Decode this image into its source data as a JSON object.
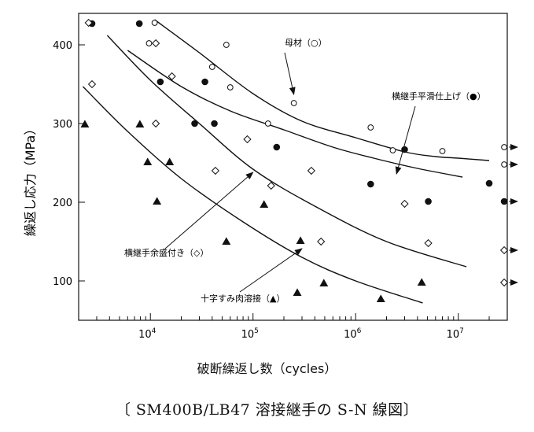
{
  "chart_data": {
    "type": "scatter",
    "x_scale": "log",
    "xlim": [
      2000,
      30000000
    ],
    "ylim": [
      50,
      440
    ],
    "xticks": [
      {
        "value": 10000,
        "base": "10",
        "exp": "4"
      },
      {
        "value": 100000,
        "base": "10",
        "exp": "5"
      },
      {
        "value": 1000000,
        "base": "10",
        "exp": "6"
      },
      {
        "value": 10000000,
        "base": "10",
        "exp": "7"
      }
    ],
    "yticks": [
      100,
      200,
      300,
      400
    ],
    "xlabel": "破断繰返し数（cycles）",
    "ylabel": "繰返し応力（MPa）",
    "grid": false,
    "series": [
      {
        "name": "母材（○）",
        "marker": "open-circle",
        "points": [
          [
            11000,
            428
          ],
          [
            9700,
            402
          ],
          [
            55000,
            400
          ],
          [
            40000,
            372
          ],
          [
            60000,
            346
          ],
          [
            140000,
            300
          ],
          [
            250000,
            326
          ],
          [
            1400000,
            295
          ],
          [
            2300000,
            266
          ],
          [
            7000000,
            265
          ]
        ],
        "runouts": [
          [
            28000000,
            270
          ],
          [
            28000000,
            248
          ]
        ]
      },
      {
        "name": "横継手平滑仕上げ（●）",
        "marker": "filled-circle",
        "points": [
          [
            2700,
            427
          ],
          [
            7800,
            427
          ],
          [
            12500,
            353
          ],
          [
            34000,
            353
          ],
          [
            27000,
            300
          ],
          [
            42000,
            300
          ],
          [
            170000,
            270
          ],
          [
            1400000,
            223
          ],
          [
            3000000,
            267
          ],
          [
            5100000,
            201
          ],
          [
            20000000,
            224
          ]
        ],
        "runouts": [
          [
            28000000,
            201
          ]
        ]
      },
      {
        "name": "横継手余盛付き（◇）",
        "marker": "open-diamond",
        "points": [
          [
            2500,
            428
          ],
          [
            11300,
            402
          ],
          [
            2700,
            350
          ],
          [
            16200,
            360
          ],
          [
            11300,
            300
          ],
          [
            88000,
            280
          ],
          [
            43000,
            240
          ],
          [
            150000,
            221
          ],
          [
            370000,
            240
          ],
          [
            3000000,
            198
          ],
          [
            5100000,
            148
          ],
          [
            460000,
            150
          ]
        ],
        "runouts": [
          [
            28000000,
            139
          ],
          [
            28000000,
            98
          ]
        ]
      },
      {
        "name": "十字すみ肉溶接（▲）",
        "marker": "filled-triangle",
        "points": [
          [
            2300,
            299
          ],
          [
            7900,
            299
          ],
          [
            9400,
            251
          ],
          [
            15400,
            251
          ],
          [
            11600,
            201
          ],
          [
            128000,
            197
          ],
          [
            55000,
            150
          ],
          [
            290000,
            151
          ],
          [
            270000,
            85
          ],
          [
            490000,
            97
          ],
          [
            1760000,
            77
          ],
          [
            4400000,
            98
          ]
        ],
        "runouts": []
      }
    ],
    "curves": [
      {
        "name": "母材（○）",
        "points": [
          [
            11000,
            432
          ],
          [
            30000,
            390
          ],
          [
            100000,
            338
          ],
          [
            300000,
            303
          ],
          [
            1000000,
            282
          ],
          [
            3000000,
            264
          ],
          [
            6000000,
            258
          ],
          [
            10000000,
            256
          ],
          [
            20000000,
            253
          ]
        ]
      },
      {
        "name": "横継手平滑仕上げ（●）",
        "points": [
          [
            6000,
            393
          ],
          [
            20000,
            347
          ],
          [
            60000,
            316
          ],
          [
            200000,
            292
          ],
          [
            600000,
            270
          ],
          [
            1500000,
            256
          ],
          [
            4000000,
            243
          ],
          [
            11000000,
            232
          ]
        ]
      },
      {
        "name": "横継手余盛付き（◇）",
        "points": [
          [
            3800,
            412
          ],
          [
            10000,
            355
          ],
          [
            30000,
            300
          ],
          [
            100000,
            242
          ],
          [
            400000,
            195
          ],
          [
            2000000,
            150
          ],
          [
            12000000,
            118
          ]
        ]
      },
      {
        "name": "十字すみ肉溶接（▲）",
        "points": [
          [
            2200,
            347
          ],
          [
            6000,
            290
          ],
          [
            20000,
            230
          ],
          [
            80000,
            175
          ],
          [
            300000,
            130
          ],
          [
            1000000,
            100
          ],
          [
            4500000,
            72
          ]
        ]
      }
    ],
    "annotations": [
      {
        "text": "母材（○）",
        "series": 0,
        "arrow_to": [
          250000,
          337
        ]
      },
      {
        "text": "横継手平滑仕上げ（●）",
        "series": 1,
        "arrow_to": [
          2500000,
          236
        ]
      },
      {
        "text": "横継手余盛付き（◇）",
        "series": 2,
        "arrow_to": [
          100000,
          238
        ]
      },
      {
        "text": "十字すみ肉溶接（▲）",
        "series": 3,
        "arrow_to": [
          300000,
          141
        ]
      }
    ]
  },
  "caption": "〔 SM400B/LB47 溶接継手の S-N 線図〕"
}
